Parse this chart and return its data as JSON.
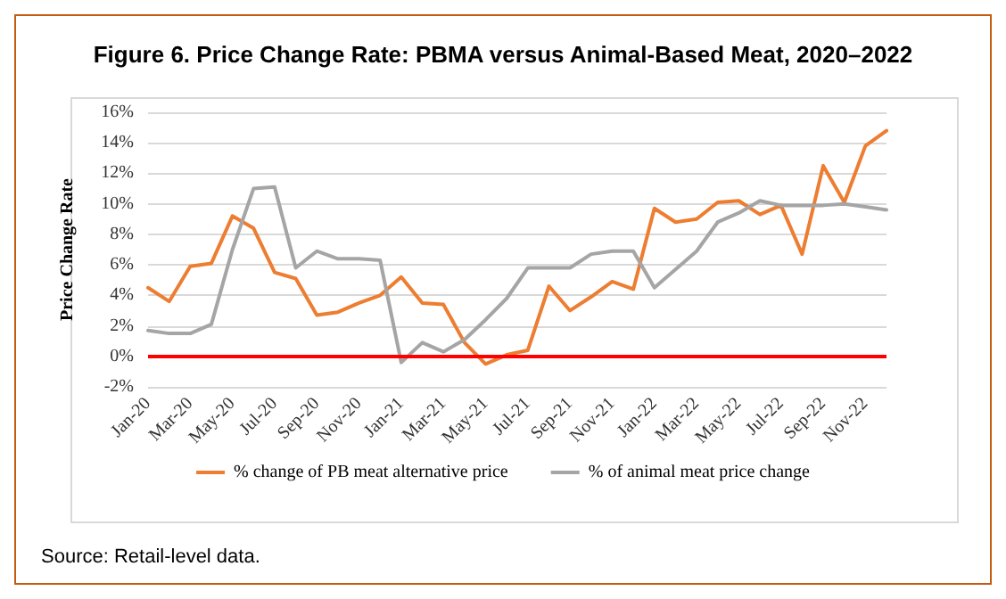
{
  "chart_data": {
    "type": "line",
    "title": "Figure 6. Price Change Rate: PBMA versus Animal-Based Meat, 2020–2022",
    "ylabel": "Price Change Rate",
    "categories": [
      "Jan-20",
      null,
      "Mar-20",
      null,
      "May-20",
      null,
      "Jul-20",
      null,
      "Sep-20",
      null,
      "Nov-20",
      null,
      "Jan-21",
      null,
      "Mar-21",
      null,
      "May-21",
      null,
      "Jul-21",
      null,
      "Sep-21",
      null,
      "Nov-21",
      null,
      "Jan-22",
      null,
      "Mar-22",
      null,
      "May-22",
      null,
      "Jul-22",
      null,
      "Sep-22",
      null,
      "Nov-22",
      null
    ],
    "series": [
      {
        "name": "% change of PB meat alternative price",
        "color": "#ed7d31",
        "values": [
          4.5,
          3.6,
          5.9,
          6.1,
          9.2,
          8.4,
          5.5,
          5.1,
          2.7,
          2.9,
          3.5,
          4.0,
          5.2,
          3.5,
          3.4,
          0.9,
          -0.5,
          0.1,
          0.4,
          4.6,
          3.0,
          3.9,
          4.9,
          4.4,
          9.7,
          8.8,
          9.0,
          10.1,
          10.2,
          9.3,
          9.9,
          6.7,
          12.5,
          10.1,
          13.8,
          14.8
        ]
      },
      {
        "name": "% of animal meat price change",
        "color": "#a5a5a5",
        "values": [
          1.7,
          1.5,
          1.5,
          2.1,
          7.0,
          11.0,
          11.1,
          5.8,
          6.9,
          6.4,
          6.4,
          6.3,
          -0.4,
          0.9,
          0.3,
          1.1,
          2.4,
          3.8,
          5.8,
          5.8,
          5.8,
          6.7,
          6.9,
          6.9,
          4.5,
          5.7,
          6.9,
          8.8,
          9.4,
          10.2,
          9.9,
          9.9,
          9.9,
          10.0,
          9.8,
          9.6
        ]
      }
    ],
    "ylim": [
      -2,
      16
    ],
    "yticks": [
      {
        "value": -2,
        "label": "-2%"
      },
      {
        "value": 0,
        "label": "0%"
      },
      {
        "value": 2,
        "label": "2%"
      },
      {
        "value": 4,
        "label": "4%"
      },
      {
        "value": 6,
        "label": "6%"
      },
      {
        "value": 8,
        "label": "8%"
      },
      {
        "value": 10,
        "label": "10%"
      },
      {
        "value": 12,
        "label": "12%"
      },
      {
        "value": 14,
        "label": "14%"
      },
      {
        "value": 16,
        "label": "16%"
      }
    ],
    "grid": "y",
    "legend": "bottom",
    "marker": "none",
    "line_style": "solid",
    "ref_lines": [
      {
        "axis": "y",
        "value": 0,
        "color": "#ff0000"
      }
    ],
    "annotations": [
      "Source: Retail-level data."
    ]
  }
}
